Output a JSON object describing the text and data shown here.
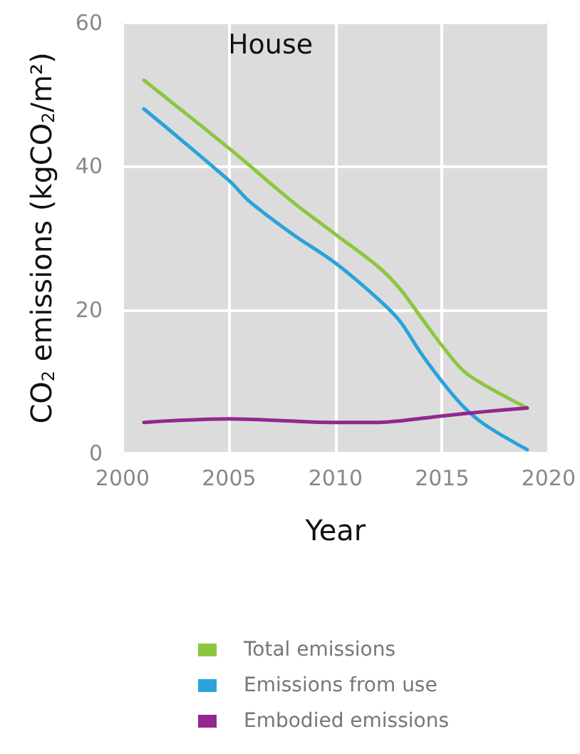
{
  "chart_data": {
    "type": "line",
    "xlabel": "Year",
    "ylabel": "CO$_{2}$ emissions (kgCO$_{2}$/m²)",
    "annotations": [
      "House"
    ],
    "xlim": [
      2000,
      2020
    ],
    "xticks": [
      2000,
      2005,
      2010,
      2015,
      2020
    ],
    "ylim": [
      0,
      60
    ],
    "yticks": [
      0,
      20,
      40,
      60
    ],
    "grid": true,
    "legend": "bottom",
    "marker": "none",
    "line_style": "solid",
    "series": [
      {
        "name": "Total emissions",
        "color": "#8cc63f",
        "x": [
          2001,
          2005,
          2008,
          2010,
          2012,
          2013,
          2014,
          2015,
          2016,
          2017,
          2019
        ],
        "values": [
          52,
          42.5,
          35,
          30.5,
          26,
          23,
          19,
          15,
          11.5,
          9.5,
          6.3
        ]
      },
      {
        "name": "Emissions from use",
        "color": "#29a3dc",
        "x": [
          2001,
          2005,
          2006,
          2008,
          2010,
          2012,
          2013,
          2014,
          2015,
          2016,
          2017,
          2019
        ],
        "values": [
          48,
          38,
          35,
          30.5,
          26.5,
          21.5,
          18.5,
          14,
          10,
          6.5,
          4,
          0.5
        ]
      },
      {
        "name": "Embodied emissions",
        "color": "#92278f",
        "x": [
          2001,
          2005,
          2010,
          2012,
          2013,
          2015,
          2017,
          2019
        ],
        "values": [
          4.3,
          4.8,
          4.3,
          4.3,
          4.5,
          5.2,
          5.8,
          6.3
        ]
      }
    ]
  }
}
